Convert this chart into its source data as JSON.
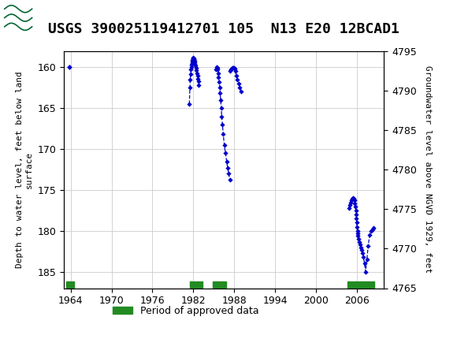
{
  "title": "USGS 390025119412701 105  N13 E20 12BCAD1",
  "ylabel_left": "Depth to water level, feet below land\nsurface",
  "ylabel_right": "Groundwater level above NGVD 1929, feet",
  "xlim": [
    1963,
    2010
  ],
  "ylim_left": [
    158,
    187
  ],
  "ylim_right": [
    4765,
    4795
  ],
  "yticks_left": [
    160,
    165,
    170,
    175,
    180,
    185
  ],
  "yticks_right": [
    4765,
    4770,
    4775,
    4780,
    4785,
    4790,
    4795
  ],
  "xticks": [
    1964,
    1970,
    1976,
    1982,
    1988,
    1994,
    2000,
    2006
  ],
  "header_color": "#006633",
  "data_color": "#0000cc",
  "approved_color": "#228B22",
  "title_fontsize": 13,
  "axis_label_fontsize": 8,
  "tick_fontsize": 9,
  "approved_bars": [
    [
      1963.3,
      1964.5
    ],
    [
      1981.5,
      1983.3
    ],
    [
      1984.8,
      1986.8
    ],
    [
      2004.7,
      2008.6
    ]
  ],
  "g1_dates": [
    1981.42,
    1981.5,
    1981.55,
    1981.6,
    1981.65,
    1981.7,
    1981.75,
    1981.8,
    1981.85,
    1981.9,
    1981.95,
    1982.0,
    1982.05,
    1982.1,
    1982.15,
    1982.2,
    1982.25,
    1982.3,
    1982.38,
    1982.45,
    1982.52,
    1982.6,
    1982.68,
    1982.75,
    1982.82
  ],
  "g1_depths": [
    164.5,
    162.5,
    161.5,
    160.8,
    160.3,
    160.0,
    159.7,
    159.5,
    159.3,
    159.1,
    158.9,
    158.85,
    158.9,
    159.0,
    159.2,
    159.4,
    159.6,
    159.8,
    160.1,
    160.4,
    160.7,
    161.0,
    161.4,
    161.7,
    162.2
  ],
  "g2a_dates": [
    1985.3,
    1985.38,
    1985.45,
    1985.52,
    1985.58,
    1985.65,
    1985.72,
    1985.8,
    1985.88,
    1985.95,
    1986.02,
    1986.1,
    1986.18,
    1986.28,
    1986.4,
    1986.55,
    1986.72,
    1986.9,
    1987.05,
    1987.2,
    1987.38
  ],
  "g2a_depths": [
    160.3,
    160.15,
    160.0,
    160.1,
    160.3,
    160.7,
    161.2,
    161.8,
    162.5,
    163.2,
    164.0,
    165.0,
    166.0,
    167.0,
    168.2,
    169.5,
    170.5,
    171.5,
    172.3,
    173.0,
    173.8
  ],
  "g2b_dates": [
    1987.45,
    1987.55,
    1987.65,
    1987.75,
    1987.85,
    1987.95,
    1988.05,
    1988.18,
    1988.32,
    1988.48,
    1988.65,
    1988.82,
    1989.0
  ],
  "g2b_depths": [
    160.5,
    160.3,
    160.2,
    160.1,
    160.05,
    160.1,
    160.2,
    160.5,
    161.0,
    161.5,
    162.0,
    162.5,
    163.0
  ],
  "g3_dates": [
    2004.85,
    2005.0,
    2005.12,
    2005.25,
    2005.38,
    2005.5,
    2005.6,
    2005.68,
    2005.75,
    2005.82,
    2005.88,
    2005.92,
    2005.96,
    2006.0,
    2006.05,
    2006.1,
    2006.15,
    2006.2,
    2006.28,
    2006.38,
    2006.5,
    2006.62,
    2006.75,
    2006.88,
    2007.0,
    2007.15,
    2007.3,
    2007.5,
    2007.7,
    2007.9,
    2008.1,
    2008.3,
    2008.5
  ],
  "g3_depths": [
    177.2,
    176.8,
    176.5,
    176.3,
    176.1,
    176.0,
    176.1,
    176.3,
    176.6,
    177.0,
    177.5,
    178.0,
    178.5,
    179.0,
    179.5,
    180.0,
    180.3,
    180.6,
    181.0,
    181.4,
    181.7,
    182.0,
    182.3,
    182.7,
    183.2,
    184.0,
    185.0,
    183.5,
    181.8,
    180.5,
    180.0,
    179.8,
    179.6
  ],
  "iso_dates": [
    1963.8
  ],
  "iso_depths": [
    160.0
  ]
}
